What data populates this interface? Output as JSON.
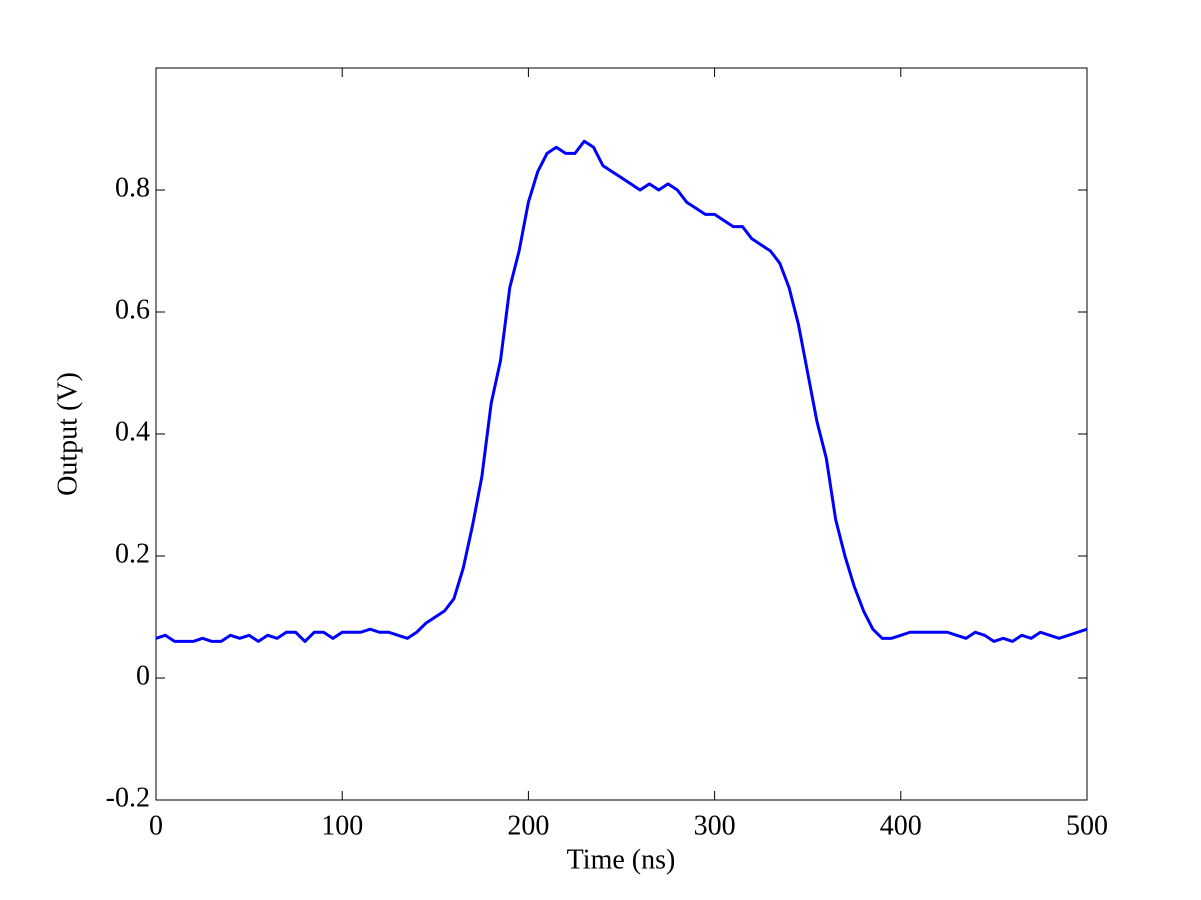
{
  "chart_data": {
    "type": "line",
    "xlabel": "Time (ns)",
    "ylabel": "Output (V)",
    "x": [
      0,
      5,
      10,
      15,
      20,
      25,
      30,
      35,
      40,
      45,
      50,
      55,
      60,
      65,
      70,
      75,
      80,
      85,
      90,
      95,
      100,
      105,
      110,
      115,
      120,
      125,
      130,
      135,
      140,
      145,
      150,
      155,
      160,
      165,
      170,
      175,
      180,
      185,
      190,
      195,
      200,
      205,
      210,
      215,
      220,
      225,
      230,
      235,
      240,
      245,
      250,
      255,
      260,
      265,
      270,
      275,
      280,
      285,
      290,
      295,
      300,
      305,
      310,
      315,
      320,
      325,
      330,
      335,
      340,
      345,
      350,
      355,
      360,
      365,
      370,
      375,
      380,
      385,
      390,
      395,
      400,
      405,
      410,
      415,
      420,
      425,
      430,
      435,
      440,
      445,
      450,
      455,
      460,
      465,
      470,
      475,
      480,
      485,
      490,
      495,
      500
    ],
    "series": [
      {
        "name": "Output",
        "color": "#0000ff",
        "values": [
          0.065,
          0.07,
          0.06,
          0.06,
          0.06,
          0.065,
          0.06,
          0.06,
          0.07,
          0.065,
          0.07,
          0.06,
          0.07,
          0.065,
          0.075,
          0.075,
          0.06,
          0.075,
          0.075,
          0.065,
          0.075,
          0.075,
          0.075,
          0.08,
          0.075,
          0.075,
          0.07,
          0.065,
          0.075,
          0.09,
          0.1,
          0.11,
          0.13,
          0.18,
          0.25,
          0.33,
          0.45,
          0.52,
          0.64,
          0.7,
          0.78,
          0.83,
          0.86,
          0.87,
          0.86,
          0.86,
          0.88,
          0.87,
          0.84,
          0.83,
          0.82,
          0.81,
          0.8,
          0.81,
          0.8,
          0.81,
          0.8,
          0.78,
          0.77,
          0.76,
          0.76,
          0.75,
          0.74,
          0.74,
          0.72,
          0.71,
          0.7,
          0.68,
          0.64,
          0.58,
          0.5,
          0.42,
          0.36,
          0.26,
          0.2,
          0.15,
          0.11,
          0.08,
          0.065,
          0.065,
          0.07,
          0.075,
          0.075,
          0.075,
          0.075,
          0.075,
          0.07,
          0.065,
          0.075,
          0.07,
          0.06,
          0.065,
          0.06,
          0.07,
          0.065,
          0.075,
          0.07,
          0.065,
          0.07,
          0.075,
          0.08
        ]
      }
    ],
    "xlim": [
      0,
      500
    ],
    "xticks": [
      0,
      100,
      200,
      300,
      400,
      500
    ],
    "ylim": [
      -0.2,
      1.0
    ],
    "yticks": [
      -0.2,
      0,
      0.2,
      0.4,
      0.6,
      0.8
    ],
    "grid": false
  }
}
